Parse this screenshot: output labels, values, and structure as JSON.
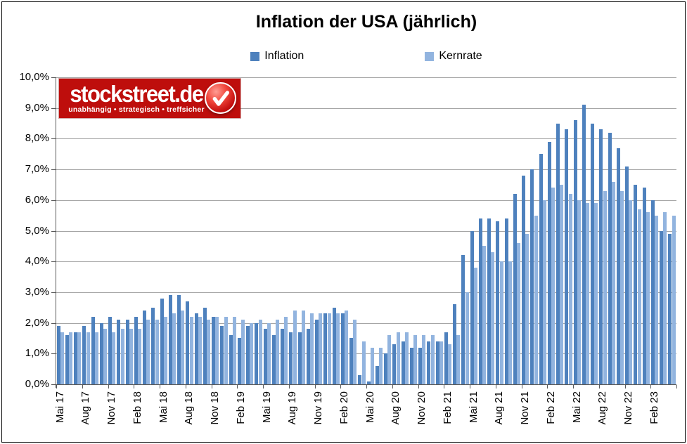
{
  "title": "Inflation der USA (jährlich)",
  "legend": {
    "items": [
      {
        "label": "Inflation",
        "color": "#4e81bd"
      },
      {
        "label": "Kernrate",
        "color": "#92b4df"
      }
    ]
  },
  "logo": {
    "brand": "stockstreet.de",
    "tagline": "unabhängig • strategisch • treffsicher",
    "bg_color": "#be0e0c"
  },
  "colors": {
    "inflation_bar": "#4e81bd",
    "kernrate_bar": "#92b4df",
    "gridline": "#a6a6a6",
    "axis": "#595959",
    "background": "#ffffff",
    "text": "#000000"
  },
  "y_axis": {
    "labels": [
      "10,0%",
      "9,0%",
      "8,0%",
      "7,0%",
      "6,0%",
      "5,0%",
      "4,0%",
      "3,0%",
      "2,0%",
      "1,0%",
      "0,0%"
    ]
  },
  "chart_data": {
    "type": "bar",
    "title": "Inflation der USA (jährlich)",
    "xlabel": "",
    "ylabel": "",
    "ylim": [
      0,
      10
    ],
    "ytick_step": 1,
    "grid": true,
    "legend_position": "top",
    "x_tick_interval": 3,
    "x_tick_labels": [
      "Mai 17",
      "Aug 17",
      "Nov 17",
      "Feb 18",
      "Mai 18",
      "Aug 18",
      "Nov 18",
      "Feb 19",
      "Mai 19",
      "Aug 19",
      "Nov 19",
      "Feb 20",
      "Mai 20",
      "Aug 20",
      "Nov 20",
      "Feb 21",
      "Mai 21",
      "Aug 21",
      "Nov 21",
      "Feb 22",
      "Mai 22",
      "Aug 22",
      "Nov 22",
      "Feb 23"
    ],
    "categories": [
      "Mai 17",
      "Jun 17",
      "Jul 17",
      "Aug 17",
      "Sep 17",
      "Okt 17",
      "Nov 17",
      "Dez 17",
      "Jan 18",
      "Feb 18",
      "Mär 18",
      "Apr 18",
      "Mai 18",
      "Jun 18",
      "Jul 18",
      "Aug 18",
      "Sep 18",
      "Okt 18",
      "Nov 18",
      "Dez 18",
      "Jan 19",
      "Feb 19",
      "Mär 19",
      "Apr 19",
      "Mai 19",
      "Jun 19",
      "Jul 19",
      "Aug 19",
      "Sep 19",
      "Okt 19",
      "Nov 19",
      "Dez 19",
      "Jan 20",
      "Feb 20",
      "Mär 20",
      "Apr 20",
      "Mai 20",
      "Jun 20",
      "Jul 20",
      "Aug 20",
      "Sep 20",
      "Okt 20",
      "Nov 20",
      "Dez 20",
      "Jan 21",
      "Feb 21",
      "Mär 21",
      "Apr 21",
      "Mai 21",
      "Jun 21",
      "Jul 21",
      "Aug 21",
      "Sep 21",
      "Okt 21",
      "Nov 21",
      "Dez 21",
      "Jan 22",
      "Feb 22",
      "Mär 22",
      "Apr 22",
      "Mai 22",
      "Jun 22",
      "Jul 22",
      "Aug 22",
      "Sep 22",
      "Okt 22",
      "Nov 22",
      "Dez 22",
      "Jan 23",
      "Feb 23",
      "Mär 23",
      "Apr 23"
    ],
    "series": [
      {
        "name": "Inflation",
        "color": "#4e81bd",
        "values": [
          1.9,
          1.6,
          1.7,
          1.9,
          2.2,
          2.0,
          2.2,
          2.1,
          2.1,
          2.2,
          2.4,
          2.5,
          2.8,
          2.9,
          2.9,
          2.7,
          2.3,
          2.5,
          2.2,
          1.9,
          1.6,
          1.5,
          1.9,
          2.0,
          1.8,
          1.6,
          1.8,
          1.7,
          1.7,
          1.8,
          2.1,
          2.3,
          2.5,
          2.3,
          1.5,
          0.3,
          0.1,
          0.6,
          1.0,
          1.3,
          1.4,
          1.2,
          1.2,
          1.4,
          1.4,
          1.7,
          2.6,
          4.2,
          5.0,
          5.4,
          5.4,
          5.3,
          5.4,
          6.2,
          6.8,
          7.0,
          7.5,
          7.9,
          8.5,
          8.3,
          8.6,
          9.1,
          8.5,
          8.3,
          8.2,
          7.7,
          7.1,
          6.5,
          6.4,
          6.0,
          5.0,
          4.9
        ]
      },
      {
        "name": "Kernrate",
        "color": "#92b4df",
        "values": [
          1.7,
          1.7,
          1.7,
          1.7,
          1.7,
          1.8,
          1.7,
          1.8,
          1.8,
          1.8,
          2.1,
          2.1,
          2.2,
          2.3,
          2.4,
          2.2,
          2.2,
          2.1,
          2.2,
          2.2,
          2.2,
          2.1,
          2.0,
          2.1,
          2.0,
          2.1,
          2.2,
          2.4,
          2.4,
          2.3,
          2.3,
          2.3,
          2.3,
          2.4,
          2.1,
          1.4,
          1.2,
          1.2,
          1.6,
          1.7,
          1.7,
          1.6,
          1.6,
          1.6,
          1.4,
          1.3,
          1.6,
          3.0,
          3.8,
          4.5,
          4.3,
          4.0,
          4.0,
          4.6,
          4.9,
          5.5,
          6.0,
          6.4,
          6.5,
          6.2,
          6.0,
          5.9,
          5.9,
          6.3,
          6.6,
          6.3,
          6.0,
          5.7,
          5.6,
          5.5,
          5.6,
          5.5
        ]
      }
    ]
  }
}
